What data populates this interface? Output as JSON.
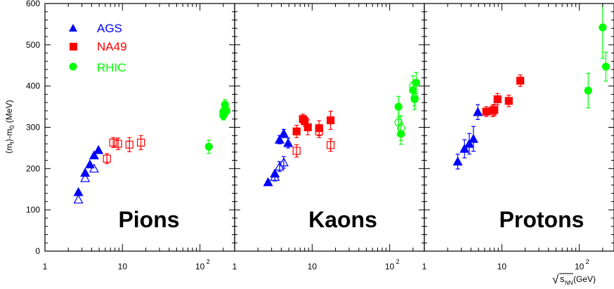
{
  "chart_data": {
    "type": "scatter",
    "ylabel_parts": {
      "open": "⟨m",
      "sub_t": "t",
      "close": "⟩-m",
      "sub_0": "0",
      "unit": " (MeV)"
    },
    "xlabel_parts": {
      "sqrt": "√",
      "s": "s",
      "sub": "NN",
      "unit": " (GeV)"
    },
    "ylim": [
      0,
      600
    ],
    "yticks": [
      0,
      100,
      200,
      300,
      400,
      500,
      600
    ],
    "xscale": "log",
    "xlim": [
      1,
      280
    ],
    "xticks": [
      {
        "value": 1,
        "label": "1"
      },
      {
        "value": 10,
        "label": "10"
      },
      {
        "value": 100,
        "label": "10",
        "sup": "2"
      }
    ],
    "legend": [
      {
        "label": "AGS",
        "marker": "triangle",
        "color": "#0000ff"
      },
      {
        "label": "NA49",
        "marker": "square",
        "color": "#ff0000"
      },
      {
        "label": "RHIC",
        "marker": "circle",
        "color": "#00ff00"
      }
    ],
    "panels": [
      {
        "label": "Pions",
        "series": [
          {
            "experiment": "AGS",
            "filled": true,
            "color": "#0000ff",
            "marker": "triangle",
            "points": [
              [
                2.7,
                143,
                0
              ],
              [
                3.3,
                190,
                0
              ],
              [
                3.8,
                210,
                0
              ],
              [
                4.3,
                232,
                0
              ],
              [
                4.9,
                245,
                0
              ]
            ]
          },
          {
            "experiment": "AGS",
            "filled": false,
            "color": "#0000ff",
            "marker": "triangle",
            "points": [
              [
                2.7,
                125,
                0
              ],
              [
                3.3,
                177,
                0
              ],
              [
                4.3,
                200,
                0
              ]
            ]
          },
          {
            "experiment": "NA49",
            "filled": false,
            "color": "#ff0000",
            "marker": "square",
            "points": [
              [
                6.3,
                224,
                12
              ],
              [
                7.6,
                263,
                12
              ],
              [
                8.8,
                260,
                14
              ],
              [
                12.3,
                258,
                17
              ],
              [
                17.3,
                263,
                17
              ]
            ]
          },
          {
            "experiment": "RHIC",
            "filled": true,
            "color": "#00ff00",
            "marker": "circle",
            "points": [
              [
                130,
                253,
                16
              ],
              [
                200,
                328,
                10
              ],
              [
                200,
                338,
                10
              ],
              [
                210,
                355,
                12
              ],
              [
                220,
                340,
                10
              ]
            ]
          },
          {
            "experiment": "RHIC",
            "filled": false,
            "color": "#00ff00",
            "marker": "circle",
            "points": [
              [
                200,
                332,
                8
              ]
            ]
          }
        ]
      },
      {
        "label": "Kaons",
        "series": [
          {
            "experiment": "AGS",
            "filled": true,
            "color": "#0000ff",
            "marker": "triangle",
            "points": [
              [
                2.7,
                167,
                0
              ],
              [
                3.3,
                188,
                0
              ],
              [
                3.8,
                270,
                10
              ],
              [
                4.3,
                285,
                10
              ],
              [
                4.9,
                262,
                12
              ]
            ]
          },
          {
            "experiment": "AGS",
            "filled": false,
            "color": "#0000ff",
            "marker": "triangle",
            "points": [
              [
                3.3,
                180,
                10
              ],
              [
                3.8,
                205,
                12
              ],
              [
                4.3,
                215,
                14
              ]
            ]
          },
          {
            "experiment": "NA49",
            "filled": true,
            "color": "#ff0000",
            "marker": "square",
            "points": [
              [
                6.3,
                290,
                15
              ],
              [
                7.6,
                320,
                12
              ],
              [
                8.0,
                315,
                12
              ],
              [
                8.8,
                300,
                18
              ],
              [
                12.3,
                298,
                18
              ],
              [
                17.3,
                317,
                22
              ]
            ]
          },
          {
            "experiment": "NA49",
            "filled": false,
            "color": "#ff0000",
            "marker": "square",
            "points": [
              [
                6.3,
                243,
                15
              ],
              [
                12.3,
                290,
                15
              ],
              [
                17.3,
                257,
                15
              ]
            ]
          },
          {
            "experiment": "RHIC",
            "filled": true,
            "color": "#00ff00",
            "marker": "circle",
            "points": [
              [
                130,
                350,
                25
              ],
              [
                140,
                284,
                25
              ],
              [
                200,
                390,
                20
              ],
              [
                210,
                368,
                25
              ],
              [
                220,
                408,
                25
              ]
            ]
          },
          {
            "experiment": "RHIC",
            "filled": false,
            "color": "#00ff00",
            "marker": "circle",
            "points": [
              [
                130,
                312,
                30
              ],
              [
                140,
                298,
                30
              ],
              [
                200,
                400,
                25
              ],
              [
                210,
                372,
                20
              ]
            ]
          }
        ]
      },
      {
        "label": "Protons",
        "series": [
          {
            "experiment": "AGS",
            "filled": true,
            "color": "#0000ff",
            "marker": "triangle",
            "points": [
              [
                2.7,
                217,
                18
              ],
              [
                3.3,
                248,
                22
              ],
              [
                3.8,
                260,
                25
              ],
              [
                4.3,
                272,
                30
              ],
              [
                4.9,
                337,
                18
              ]
            ]
          },
          {
            "experiment": "NA49",
            "filled": true,
            "color": "#ff0000",
            "marker": "square",
            "points": [
              [
                6.3,
                338,
                12
              ],
              [
                7.6,
                340,
                14
              ],
              [
                8.0,
                342,
                14
              ],
              [
                8.8,
                368,
                14
              ],
              [
                12.3,
                364,
                14
              ],
              [
                17.3,
                413,
                14
              ]
            ]
          },
          {
            "experiment": "RHIC",
            "filled": true,
            "color": "#00ff00",
            "marker": "circle",
            "points": [
              [
                130,
                389,
                42
              ],
              [
                200,
                542,
                75
              ],
              [
                220,
                447,
                35
              ]
            ]
          }
        ]
      }
    ]
  }
}
